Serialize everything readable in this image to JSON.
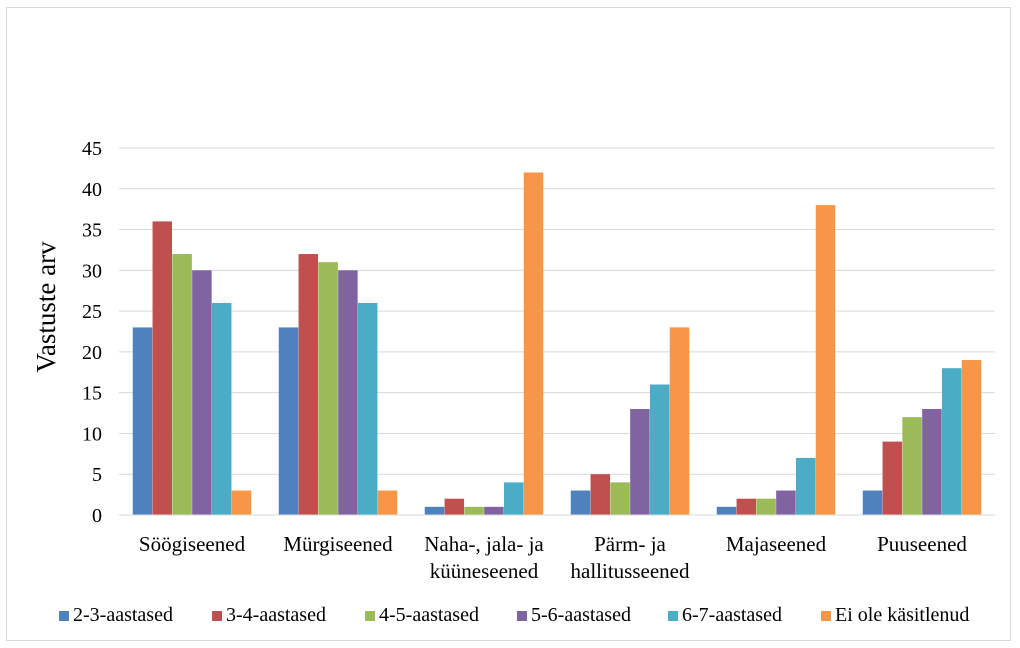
{
  "chart_data": {
    "type": "bar",
    "title": "",
    "xlabel": "",
    "ylabel": "Vastuste arv",
    "ylim": [
      0,
      45
    ],
    "yticks": [
      0,
      5,
      10,
      15,
      20,
      25,
      30,
      35,
      40,
      45
    ],
    "grid": true,
    "legend_position": "bottom",
    "categories": [
      [
        "Söögiseened"
      ],
      [
        "Mürgiseened"
      ],
      [
        "Naha-, jala- ja",
        "küüneseened"
      ],
      [
        "Pärm- ja",
        "hallitusseened"
      ],
      [
        "Majaseened"
      ],
      [
        "Puuseened"
      ]
    ],
    "series": [
      {
        "name": "2-3-aastased",
        "color": "#4f81bd",
        "values": [
          23,
          23,
          1,
          3,
          1,
          3
        ]
      },
      {
        "name": "3-4-aastased",
        "color": "#c0504d",
        "values": [
          36,
          32,
          2,
          5,
          2,
          9
        ]
      },
      {
        "name": "4-5-aastased",
        "color": "#9bbb59",
        "values": [
          32,
          31,
          1,
          4,
          2,
          12
        ]
      },
      {
        "name": "5-6-aastased",
        "color": "#8064a2",
        "values": [
          30,
          30,
          1,
          13,
          3,
          13
        ]
      },
      {
        "name": "6-7-aastased",
        "color": "#4bacc6",
        "values": [
          26,
          26,
          4,
          16,
          7,
          18
        ]
      },
      {
        "name": "Ei ole käsitlenud",
        "color": "#f79646",
        "values": [
          3,
          3,
          42,
          23,
          38,
          19
        ]
      }
    ]
  }
}
